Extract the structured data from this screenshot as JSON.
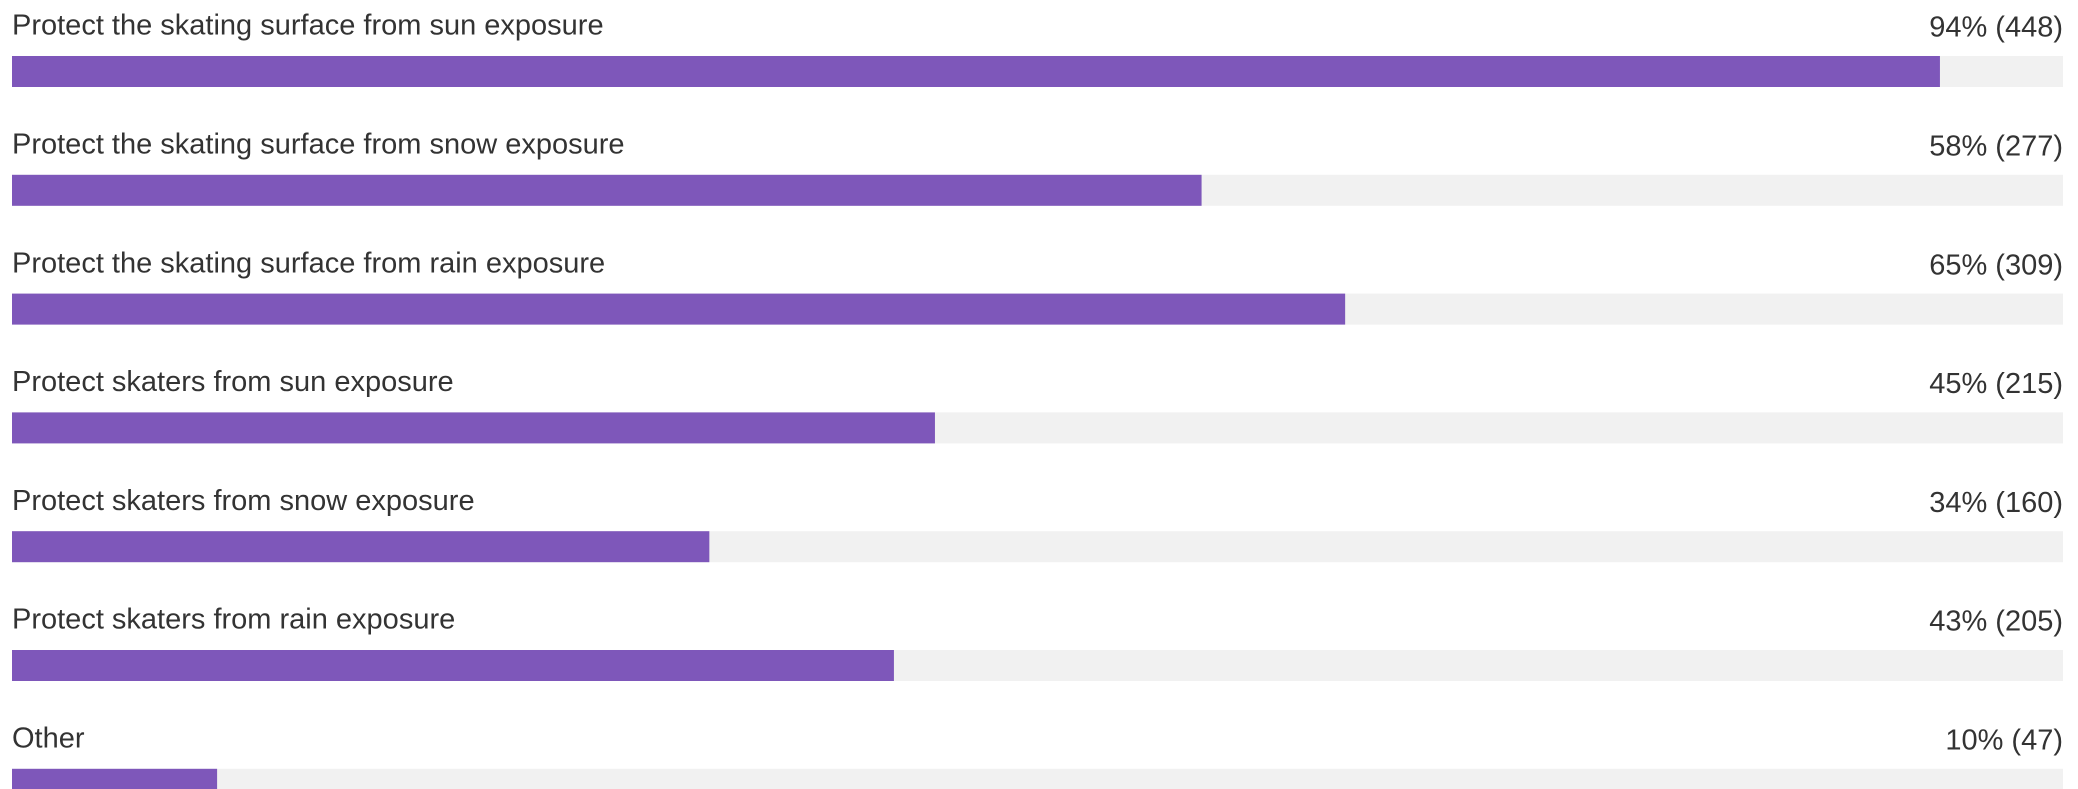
{
  "chart_data": {
    "type": "bar",
    "orientation": "horizontal",
    "categories": [
      "Protect the skating surface from sun exposure",
      "Protect the skating surface from snow exposure",
      "Protect the skating surface from rain exposure",
      "Protect skaters from sun exposure",
      "Protect skaters from snow exposure",
      "Protect skaters from rain exposure",
      "Other"
    ],
    "values": [
      94,
      58,
      65,
      45,
      34,
      43,
      10
    ],
    "value_labels": [
      "94% (448)",
      "58% (277)",
      "65% (309)",
      "45% (215)",
      "34% (160)",
      "43% (205)",
      "10% (47)"
    ],
    "color": "#7e57ba",
    "xlim": [
      0,
      100
    ]
  }
}
